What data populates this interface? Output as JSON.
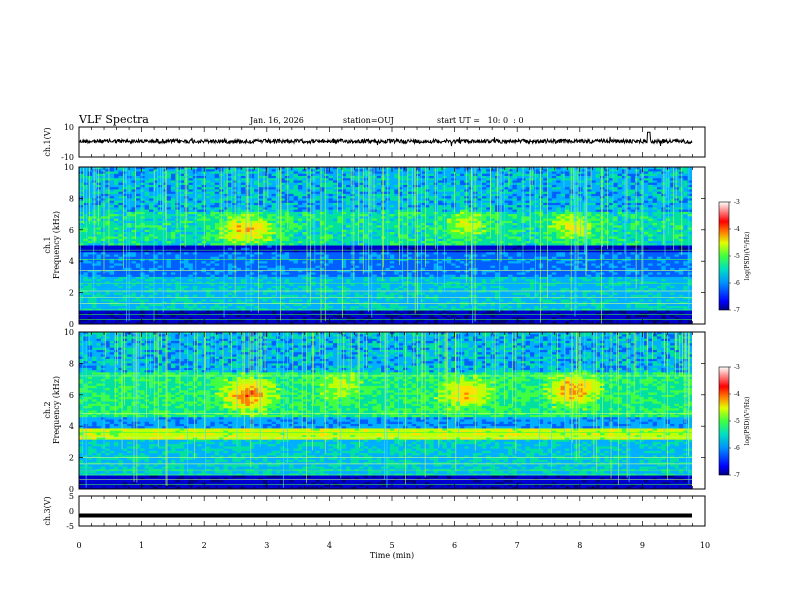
{
  "header": {
    "title": "VLF Spectra",
    "date": "Jan. 16, 2026",
    "station": "station=OUJ",
    "start_ut": "start UT =   10: 0  : 0"
  },
  "chart_data": [
    {
      "type": "line",
      "panel": "ch1-waveform",
      "ylabel": "ch.1(V)",
      "ylim": [
        -10,
        10
      ],
      "yticks": [
        "10",
        "-10"
      ],
      "xlim": [
        0,
        10
      ],
      "baseline": 0.5
    },
    {
      "type": "heatmap",
      "panel": "ch1-spectrogram",
      "ylabel_line1": "ch.1",
      "ylabel_line2": "Frequency (kHz)",
      "ylim": [
        0,
        10
      ],
      "yticks": [
        "0",
        "2",
        "4",
        "6",
        "8",
        "10"
      ],
      "xlim": [
        0,
        10
      ],
      "colorbar": {
        "label": "log(PSD)(V²/Hz)",
        "range": [
          -7,
          -3
        ],
        "ticks": [
          "-3",
          "-4",
          "-5",
          "-6",
          "-7"
        ]
      }
    },
    {
      "type": "heatmap",
      "panel": "ch2-spectrogram",
      "ylabel_line1": "ch.2",
      "ylabel_line2": "Frequency (kHz)",
      "ylim": [
        0,
        10
      ],
      "yticks": [
        "0",
        "2",
        "4",
        "6",
        "8",
        "10"
      ],
      "xlim": [
        0,
        10
      ],
      "colorbar": {
        "label": "log(PSD)(V²/Hz)",
        "range": [
          -7,
          -3
        ],
        "ticks": [
          "-3",
          "-4",
          "-5",
          "-6",
          "-7"
        ]
      }
    },
    {
      "type": "line",
      "panel": "ch3-waveform",
      "ylabel": "ch.3(V)",
      "ylim": [
        -5,
        5
      ],
      "yticks": [
        "5",
        "0",
        "-5"
      ],
      "xlim": [
        0,
        10
      ],
      "baseline": -1.5
    }
  ],
  "xaxis": {
    "label": "Time (min)",
    "ticks": [
      "0",
      "1",
      "2",
      "3",
      "4",
      "5",
      "6",
      "7",
      "8",
      "9",
      "10"
    ]
  },
  "colors": {
    "palette": [
      "#000080",
      "#0000d0",
      "#0060ff",
      "#00b0ff",
      "#00e0a0",
      "#40ff40",
      "#c0ff00",
      "#ffe000",
      "#ff8000",
      "#ff0000",
      "#ffc0c0",
      "#ffffff"
    ]
  }
}
